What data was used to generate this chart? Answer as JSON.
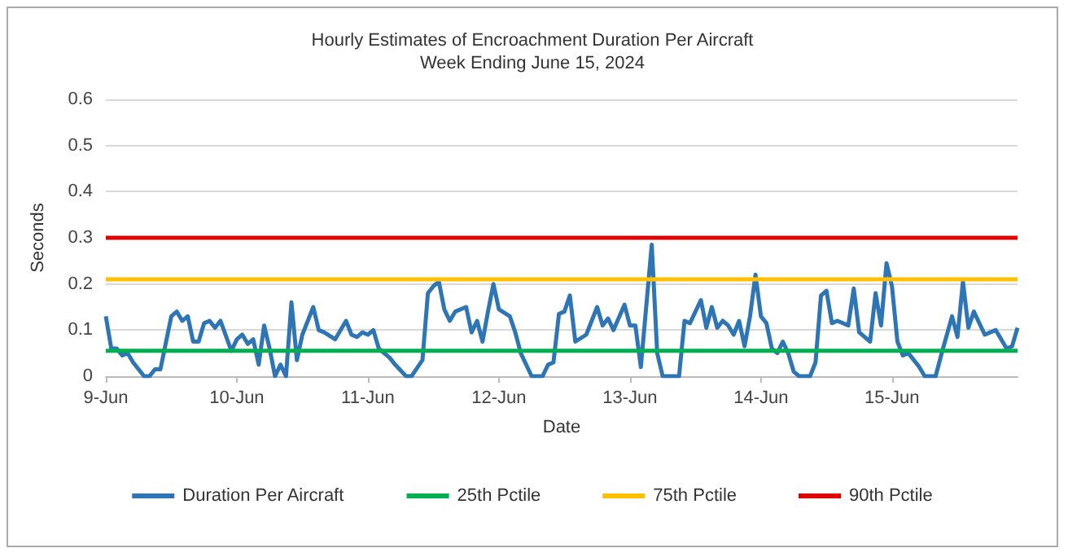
{
  "chart_data": {
    "type": "line",
    "title": "Hourly Estimates of Encroachment Duration Per Aircraft\nWeek Ending June 15, 2024",
    "xlabel": "Date",
    "ylabel": "Seconds",
    "xlim": [
      "2024-06-09T00:00",
      "2024-06-15T23:00"
    ],
    "xticks": [
      {
        "value": "2024-06-09",
        "label": "9-Jun"
      },
      {
        "value": "2024-06-10",
        "label": "10-Jun"
      },
      {
        "value": "2024-06-11",
        "label": "11-Jun"
      },
      {
        "value": "2024-06-12",
        "label": "12-Jun"
      },
      {
        "value": "2024-06-13",
        "label": "13-Jun"
      },
      {
        "value": "2024-06-14",
        "label": "14-Jun"
      },
      {
        "value": "2024-06-15",
        "label": "15-Jun"
      }
    ],
    "ylim": [
      0,
      0.6
    ],
    "yticks": [
      0,
      0.1,
      0.2,
      0.3,
      0.4,
      0.5,
      0.6
    ],
    "grid": "y",
    "legend": "bottom",
    "marker": "none",
    "line_style": "solid",
    "series": [
      {
        "name": "Duration Per Aircraft",
        "color": "#2e75b6",
        "x": [
          "2024-06-09T00:00",
          "2024-06-09T01:00",
          "2024-06-09T02:00",
          "2024-06-09T03:00",
          "2024-06-09T04:00",
          "2024-06-09T05:00",
          "2024-06-09T07:00",
          "2024-06-09T08:00",
          "2024-06-09T09:00",
          "2024-06-09T10:00",
          "2024-06-09T12:00",
          "2024-06-09T13:00",
          "2024-06-09T14:00",
          "2024-06-09T15:00",
          "2024-06-09T16:00",
          "2024-06-09T17:00",
          "2024-06-09T18:00",
          "2024-06-09T19:00",
          "2024-06-09T20:00",
          "2024-06-09T21:00",
          "2024-06-09T23:00",
          "2024-06-10T00:00",
          "2024-06-10T01:00",
          "2024-06-10T02:00",
          "2024-06-10T03:00",
          "2024-06-10T04:00",
          "2024-06-10T05:00",
          "2024-06-10T06:00",
          "2024-06-10T07:00",
          "2024-06-10T08:00",
          "2024-06-10T09:00",
          "2024-06-10T10:00",
          "2024-06-10T11:00",
          "2024-06-10T12:00",
          "2024-06-10T14:00",
          "2024-06-10T15:00",
          "2024-06-10T16:00",
          "2024-06-10T18:00",
          "2024-06-10T20:00",
          "2024-06-10T21:00",
          "2024-06-10T22:00",
          "2024-06-10T23:00",
          "2024-06-11T00:00",
          "2024-06-11T01:00",
          "2024-06-11T02:00",
          "2024-06-11T04:00",
          "2024-06-11T05:00",
          "2024-06-11T07:00",
          "2024-06-11T08:00",
          "2024-06-11T10:00",
          "2024-06-11T11:00",
          "2024-06-11T12:00",
          "2024-06-11T13:00",
          "2024-06-11T14:00",
          "2024-06-11T15:00",
          "2024-06-11T16:00",
          "2024-06-11T18:00",
          "2024-06-11T19:00",
          "2024-06-11T20:00",
          "2024-06-11T21:00",
          "2024-06-11T22:00",
          "2024-06-11T23:00",
          "2024-06-12T00:00",
          "2024-06-12T02:00",
          "2024-06-12T03:00",
          "2024-06-12T04:00",
          "2024-06-12T06:00",
          "2024-06-12T08:00",
          "2024-06-12T09:00",
          "2024-06-12T10:00",
          "2024-06-12T11:00",
          "2024-06-12T12:00",
          "2024-06-12T13:00",
          "2024-06-12T14:00",
          "2024-06-12T16:00",
          "2024-06-12T18:00",
          "2024-06-12T19:00",
          "2024-06-12T20:00",
          "2024-06-12T21:00",
          "2024-06-12T23:00",
          "2024-06-13T00:00",
          "2024-06-13T01:00",
          "2024-06-13T02:00",
          "2024-06-13T04:00",
          "2024-06-13T05:00",
          "2024-06-13T06:00",
          "2024-06-13T09:00",
          "2024-06-13T10:00",
          "2024-06-13T11:00",
          "2024-06-13T13:00",
          "2024-06-13T14:00",
          "2024-06-13T15:00",
          "2024-06-13T16:00",
          "2024-06-13T17:00",
          "2024-06-13T18:00",
          "2024-06-13T19:00",
          "2024-06-13T20:00",
          "2024-06-13T21:00",
          "2024-06-13T22:00",
          "2024-06-13T23:00",
          "2024-06-14T00:00",
          "2024-06-14T01:00",
          "2024-06-14T02:00",
          "2024-06-14T03:00",
          "2024-06-14T04:00",
          "2024-06-14T05:00",
          "2024-06-14T06:00",
          "2024-06-14T07:00",
          "2024-06-14T09:00",
          "2024-06-14T10:00",
          "2024-06-14T11:00",
          "2024-06-14T12:00",
          "2024-06-14T13:00",
          "2024-06-14T14:00",
          "2024-06-14T16:00",
          "2024-06-14T17:00",
          "2024-06-14T18:00",
          "2024-06-14T20:00",
          "2024-06-14T21:00",
          "2024-06-14T22:00",
          "2024-06-14T23:00",
          "2024-06-15T00:00",
          "2024-06-15T01:00",
          "2024-06-15T02:00",
          "2024-06-15T03:00",
          "2024-06-15T05:00",
          "2024-06-15T06:00",
          "2024-06-15T08:00",
          "2024-06-15T09:00",
          "2024-06-15T11:00",
          "2024-06-15T12:00",
          "2024-06-15T13:00",
          "2024-06-15T14:00",
          "2024-06-15T15:00",
          "2024-06-15T17:00",
          "2024-06-15T18:00",
          "2024-06-15T19:00",
          "2024-06-15T21:00",
          "2024-06-15T22:00",
          "2024-06-15T23:00"
        ],
        "values": [
          0.13,
          0.06,
          0.06,
          0.045,
          0.05,
          0.03,
          0,
          0,
          0.015,
          0.015,
          0.13,
          0.14,
          0.12,
          0.13,
          0.075,
          0.075,
          0.115,
          0.12,
          0.105,
          0.12,
          0.055,
          0.08,
          0.09,
          0.07,
          0.08,
          0.025,
          0.11,
          0.06,
          0,
          0.025,
          0,
          0.16,
          0.035,
          0.09,
          0.15,
          0.1,
          0.095,
          0.08,
          0.12,
          0.09,
          0.085,
          0.095,
          0.09,
          0.1,
          0.06,
          0.04,
          0.025,
          0,
          0,
          0.035,
          0.18,
          0.195,
          0.205,
          0.145,
          0.12,
          0.14,
          0.15,
          0.095,
          0.12,
          0.075,
          0.14,
          0.2,
          0.145,
          0.13,
          0.095,
          0.05,
          0,
          0,
          0.025,
          0.03,
          0.135,
          0.14,
          0.175,
          0.075,
          0.09,
          0.15,
          0.11,
          0.125,
          0.1,
          0.155,
          0.11,
          0.11,
          0.02,
          0.285,
          0.05,
          0,
          0,
          0.12,
          0.115,
          0.165,
          0.105,
          0.15,
          0.105,
          0.12,
          0.11,
          0.09,
          0.12,
          0.065,
          0.13,
          0.22,
          0.13,
          0.115,
          0.06,
          0.05,
          0.075,
          0.05,
          0.01,
          0,
          0,
          0.03,
          0.175,
          0.185,
          0.115,
          0.12,
          0.11,
          0.19,
          0.095,
          0.075,
          0.18,
          0.11,
          0.245,
          0.195,
          0.075,
          0.045,
          0.05,
          0.02,
          0,
          0,
          0.045,
          0.13,
          0.085,
          0.205,
          0.105,
          0.14,
          0.09,
          0.095,
          0.1,
          0.06,
          0.065,
          0.105
        ]
      },
      {
        "name": "25th Pctile",
        "color": "#00b050",
        "x": [
          "2024-06-09T00:00",
          "2024-06-15T23:00"
        ],
        "values": [
          0.055,
          0.055
        ]
      },
      {
        "name": "75th Pctile",
        "color": "#ffc000",
        "x": [
          "2024-06-09T00:00",
          "2024-06-15T23:00"
        ],
        "values": [
          0.21,
          0.21
        ]
      },
      {
        "name": "90th Pctile",
        "color": "#e00000",
        "x": [
          "2024-06-09T00:00",
          "2024-06-15T23:00"
        ],
        "values": [
          0.3,
          0.3
        ]
      }
    ]
  }
}
